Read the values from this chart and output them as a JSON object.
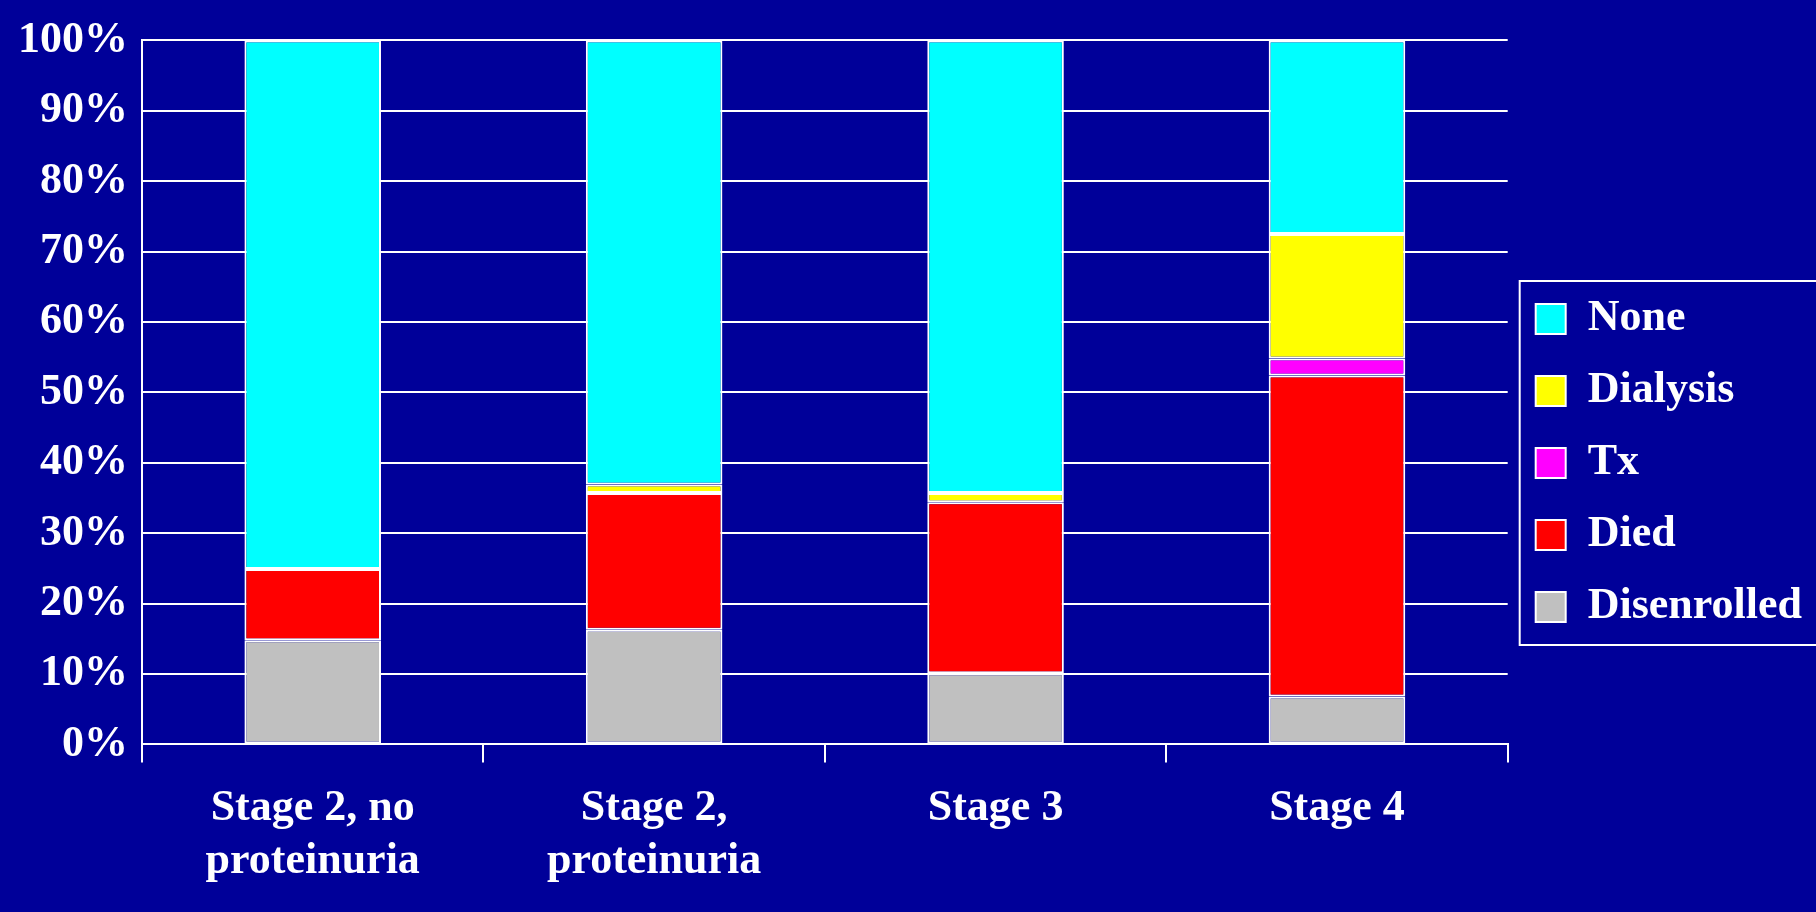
{
  "chart_data": {
    "type": "bar",
    "stacked": true,
    "categories": [
      "Stage 2, no proteinuria",
      "Stage 2, proteinuria",
      "Stage 3",
      "Stage 4"
    ],
    "series": [
      {
        "name": "Disenrolled",
        "color": "#c0c0c0",
        "values": [
          14.8,
          16.3,
          10.1,
          6.8
        ]
      },
      {
        "name": "Died",
        "color": "#ff0000",
        "values": [
          10.1,
          19.4,
          24.3,
          45.6
        ]
      },
      {
        "name": "Tx",
        "color": "#ff00ff",
        "values": [
          0,
          0,
          0,
          2.4
        ]
      },
      {
        "name": "Dialysis",
        "color": "#ffff00",
        "values": [
          0,
          1.2,
          1.3,
          17.7
        ]
      },
      {
        "name": "None",
        "color": "#00ffff",
        "values": [
          75.1,
          63.1,
          64.3,
          27.5
        ]
      }
    ],
    "ylim": [
      0,
      100
    ],
    "yticks": [
      {
        "value": 0,
        "label": "0%"
      },
      {
        "value": 10,
        "label": "10%"
      },
      {
        "value": 20,
        "label": "20%"
      },
      {
        "value": 30,
        "label": "30%"
      },
      {
        "value": 40,
        "label": "40%"
      },
      {
        "value": 50,
        "label": "50%"
      },
      {
        "value": 60,
        "label": "60%"
      },
      {
        "value": 70,
        "label": "70%"
      },
      {
        "value": 80,
        "label": "80%"
      },
      {
        "value": 90,
        "label": "90%"
      },
      {
        "value": 100,
        "label": "100%"
      }
    ],
    "grid": "y",
    "legend": "right"
  }
}
